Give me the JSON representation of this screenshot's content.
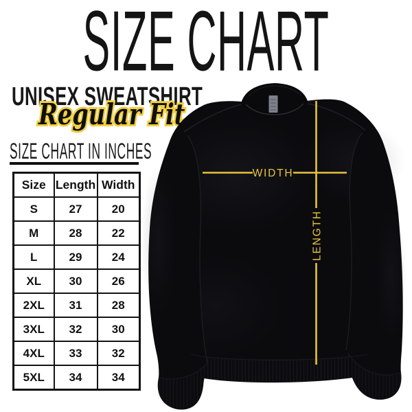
{
  "header": {
    "title": "SIZE CHART",
    "subtitle": "UNISEX SWEATSHIRT",
    "fit": "Regular Fit",
    "section_heading": "SIZE CHART IN INCHES"
  },
  "chart_data": {
    "type": "table",
    "title": "SIZE CHART",
    "subtitle": "UNISEX SWEATSHIRT — Regular Fit",
    "units": "inches",
    "columns": [
      "Size",
      "Length",
      "Width"
    ],
    "rows": [
      [
        "S",
        "27",
        "20"
      ],
      [
        "M",
        "28",
        "22"
      ],
      [
        "L",
        "29",
        "24"
      ],
      [
        "XL",
        "30",
        "26"
      ],
      [
        "2XL",
        "31",
        "28"
      ],
      [
        "3XL",
        "32",
        "30"
      ],
      [
        "4XL",
        "33",
        "32"
      ],
      [
        "5XL",
        "34",
        "34"
      ]
    ]
  },
  "diagram": {
    "garment": "black crewneck sweatshirt, front view",
    "width_label": "WIDTH",
    "length_label": "LENGTH"
  },
  "colors": {
    "accent_yellow": "#E8C43C",
    "fit_outline_yellow": "#F0CE3F",
    "garment_black": "#0B0B0E",
    "collar_black": "#0A0A0C",
    "tag_gray": "#80808A",
    "text_black": "#121212",
    "background": "#FFFFFF"
  }
}
